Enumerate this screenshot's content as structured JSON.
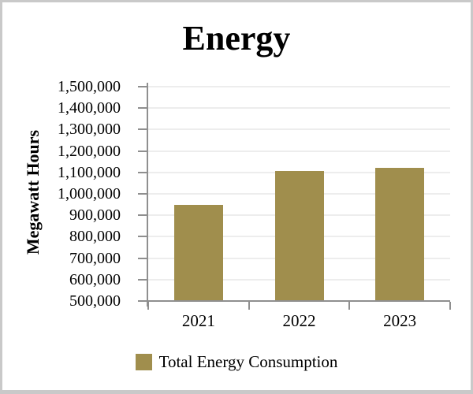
{
  "window": {
    "background": "#ffffff",
    "border_color": "#c9c9c9"
  },
  "chart_data": {
    "type": "bar",
    "title": "Energy",
    "xlabel": "",
    "ylabel": "Megawatt Hours",
    "categories": [
      "2021",
      "2022",
      "2023"
    ],
    "series": [
      {
        "name": "Total Energy Consumption",
        "values": [
          950000,
          1105000,
          1120000
        ],
        "color": "#A08E4D"
      }
    ],
    "ylim": [
      500000,
      1500000
    ],
    "ytick_step": 100000,
    "ytick_labels": [
      "500,000",
      "600,000",
      "700,000",
      "800,000",
      "900,000",
      "1,000,000",
      "1,100,000",
      "1,200,000",
      "1,300,000",
      "1,400,000",
      "1,500,000"
    ],
    "grid": true,
    "gridline_color": "#ededed",
    "axis_color": "#8f8f8f",
    "legend_position": "bottom"
  },
  "legend": {
    "swatch_color": "#A08E4D",
    "label": "Total Energy Consumption"
  }
}
